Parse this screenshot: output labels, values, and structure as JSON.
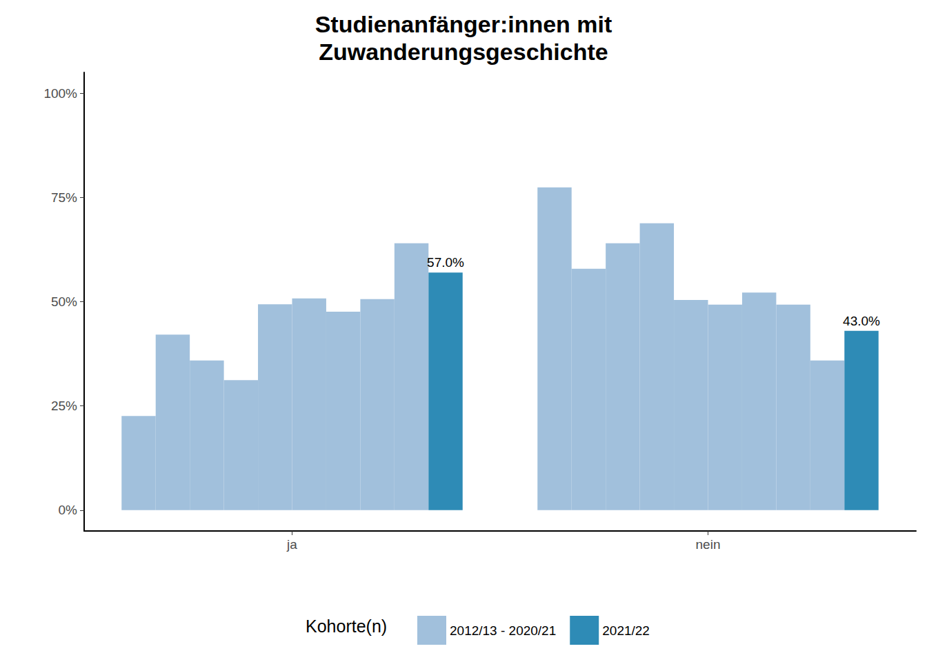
{
  "chart_data": {
    "type": "bar",
    "title": "Studienanfänger:innen mit\nZuwanderungsgeschichte",
    "categories": [
      "ja",
      "nein"
    ],
    "series": [
      {
        "name": "2012/13 - 2020/21",
        "color": "#a1c0dc",
        "values": [
          [
            22.6,
            42.1,
            35.9,
            31.2,
            49.4,
            50.8,
            47.6,
            50.6,
            64.0
          ],
          [
            77.4,
            57.9,
            64.0,
            68.8,
            50.4,
            49.3,
            52.2,
            49.3,
            35.9
          ]
        ]
      },
      {
        "name": "2021/22",
        "color": "#2e8bb6",
        "values": [
          57.0,
          43.0
        ],
        "data_labels": true,
        "value_labels": [
          "57.0%",
          "43.0%"
        ]
      }
    ],
    "ylim": [
      -5,
      105
    ],
    "yticks": [
      {
        "value": 0,
        "label": "0%"
      },
      {
        "value": 25,
        "label": "25%"
      },
      {
        "value": 50,
        "label": "50%"
      },
      {
        "value": 75,
        "label": "75%"
      },
      {
        "value": 100,
        "label": "100%"
      }
    ],
    "grid": false,
    "legend": "bottom",
    "legend_title": "Kohorte(n)"
  }
}
